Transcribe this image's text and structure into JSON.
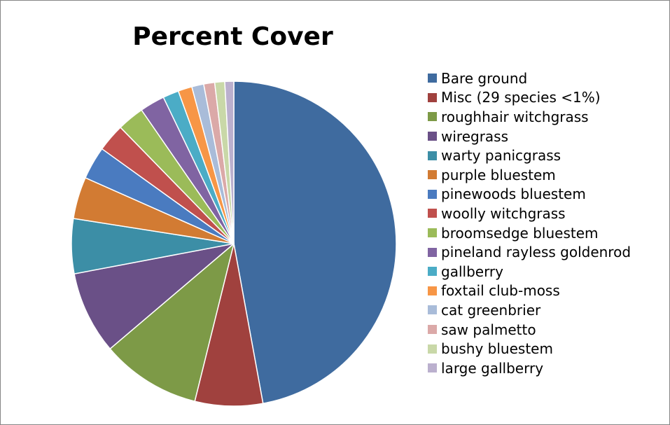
{
  "chart_data": {
    "type": "pie",
    "title": "Percent Cover",
    "legend_position": "right",
    "categories": [
      "Bare ground",
      "Misc (29 species <1%)",
      "roughhair witchgrass",
      "wiregrass",
      "warty panicgrass",
      "purple bluestem",
      "pinewoods bluestem",
      "woolly witchgrass",
      "broomsedge bluestem",
      "pineland rayless goldenrod",
      "gallberry",
      "foxtail club-moss",
      "cat greenbrier",
      "saw palmetto",
      "bushy bluestem",
      "large gallberry"
    ],
    "values": [
      47.5,
      6.8,
      10.0,
      8.3,
      5.5,
      4.2,
      3.3,
      2.8,
      2.7,
      2.5,
      1.6,
      1.4,
      1.2,
      1.1,
      1.0,
      0.9
    ],
    "colors": [
      "#3f6b9f",
      "#a0413e",
      "#7d9a47",
      "#6a5087",
      "#3c8ea6",
      "#d27b33",
      "#4a7bc0",
      "#c0504d",
      "#9bbb59",
      "#8064a2",
      "#4bacc6",
      "#f79646",
      "#a9bcd9",
      "#dba9a8",
      "#c9d8a8",
      "#bbb0ce"
    ]
  }
}
